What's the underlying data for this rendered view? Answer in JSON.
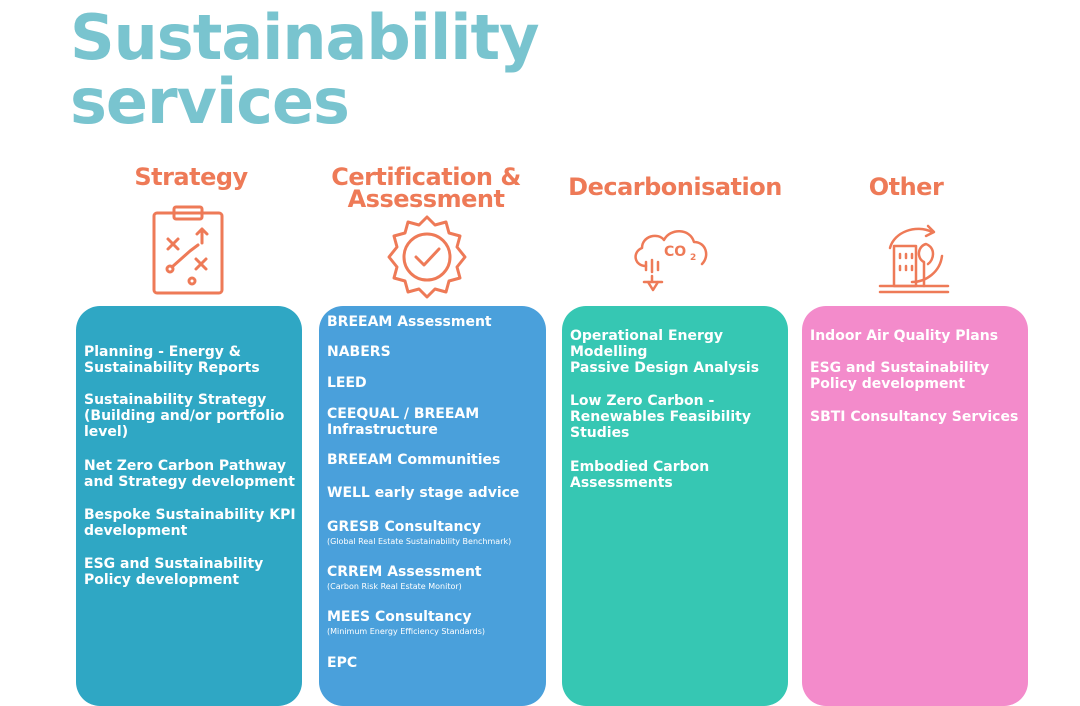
{
  "page": {
    "title_line1": "Sustainability",
    "title_line2": "services"
  },
  "colors": {
    "title": "#79c4cf",
    "heading": "#ee7a57",
    "strategy_card": "#2fa7c4",
    "certification_card": "#4aa0db",
    "decarbonisation_card": "#36c7b3",
    "other_card": "#f38bcb"
  },
  "columns": [
    {
      "heading": "Strategy",
      "icon": "clipboard-strategy-icon",
      "items": [
        {
          "text": "Planning  - Energy & Sustainability Reports"
        },
        {
          "text": "Sustainability Strategy (Building and/or portfolio level)"
        },
        {
          "text": "Net Zero Carbon Pathway and Strategy development"
        },
        {
          "text": "Bespoke Sustainability KPI development"
        },
        {
          "text": "ESG and Sustainability Policy development"
        }
      ]
    },
    {
      "heading_line1": "Certification &",
      "heading_line2": "Assessment",
      "icon": "certification-badge-icon",
      "items": [
        {
          "text": "BREEAM Assessment"
        },
        {
          "text": "NABERS"
        },
        {
          "text": "LEED"
        },
        {
          "text": "CEEQUAL / BREEAM Infrastructure"
        },
        {
          "text": "BREEAM Communities"
        },
        {
          "text": "WELL early stage advice"
        },
        {
          "text": "GRESB Consultancy",
          "sub": "(Global Real Estate Sustainability Benchmark)"
        },
        {
          "text": " CRREM Assessment",
          "sub": "(Carbon Risk Real Estate Monitor)"
        },
        {
          "text": "MEES Consultancy",
          "sub": "(Minimum Energy Efficiency Standards)"
        },
        {
          "text": "EPC"
        }
      ]
    },
    {
      "heading": "Decarbonisation",
      "icon": "co2-cloud-icon",
      "items": [
        {
          "text": "Operational Energy Modelling"
        },
        {
          "text": "Passive Design Analysis"
        },
        {
          "text": "Low Zero Carbon - Renewables Feasibility Studies"
        },
        {
          "text": "Embodied Carbon Assessments"
        }
      ]
    },
    {
      "heading": "Other",
      "icon": "green-building-icon",
      "items": [
        {
          "text": "Indoor Air Quality Plans"
        },
        {
          "text": "ESG and Sustainability Policy development"
        },
        {
          "text": "SBTI Consultancy Services"
        }
      ]
    }
  ]
}
